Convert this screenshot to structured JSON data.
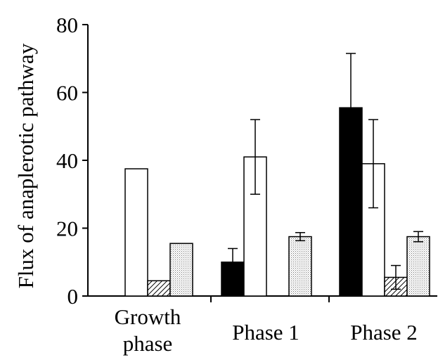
{
  "chart_data": {
    "type": "bar",
    "title": "",
    "xlabel": "",
    "ylabel": "Flux of anaplerotic pathway",
    "ylim": [
      0,
      80
    ],
    "yticks": [
      0,
      20,
      40,
      60,
      80
    ],
    "grid": false,
    "categories": [
      [
        "Growth",
        "phase"
      ],
      [
        "Phase 1"
      ],
      [
        "Phase 2"
      ]
    ],
    "series": [
      {
        "fill": "solid-black",
        "values": [
          0,
          10,
          55.5
        ],
        "errors": [
          0,
          4,
          16
        ]
      },
      {
        "fill": "white",
        "values": [
          37.5,
          41,
          39
        ],
        "errors": [
          0,
          11,
          13
        ]
      },
      {
        "fill": "diagonal-hatch",
        "values": [
          4.5,
          0,
          5.5
        ],
        "errors": [
          0,
          0,
          3.5
        ]
      },
      {
        "fill": "dotted",
        "values": [
          15.5,
          17.5,
          17.5
        ],
        "errors": [
          0,
          1.2,
          1.5
        ]
      }
    ]
  },
  "colors": {
    "ink": "#000000",
    "background": "#ffffff",
    "dotted_fill": "#d8d8d8"
  }
}
